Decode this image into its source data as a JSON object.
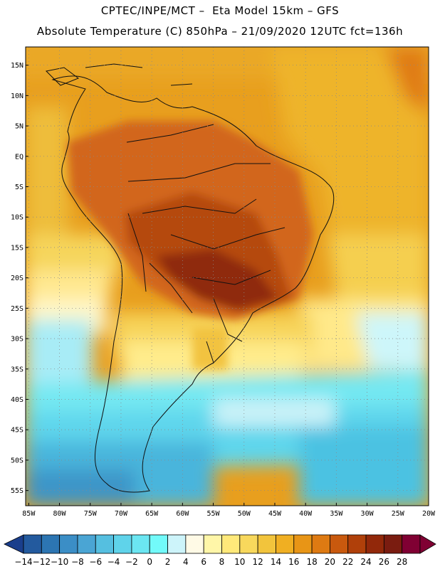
{
  "title_line1": "CPTEC/INPE/MCT –  Eta Model 15km – GFS",
  "title_line2": "Absolute Temperature (C) 850hPa – 21/09/2020 12UTC fct=136h",
  "lat_labels": [
    "15N",
    "10N",
    "5N",
    "EQ",
    "5S",
    "10S",
    "15S",
    "20S",
    "25S",
    "30S",
    "35S",
    "40S",
    "45S",
    "50S",
    "55S"
  ],
  "lon_labels": [
    "85W",
    "80W",
    "75W",
    "70W",
    "65W",
    "60W",
    "55W",
    "50W",
    "45W",
    "40W",
    "35W",
    "30W",
    "25W",
    "20W"
  ],
  "map": {
    "lon_range": [
      -85.5,
      -20
    ],
    "lat_range": [
      -57.5,
      18
    ],
    "grid_lines": "dotted"
  },
  "colorbar": {
    "labels": [
      "-14",
      "-12",
      "-10",
      "-8",
      "-6",
      "-4",
      "-2",
      "0",
      "2",
      "4",
      "6",
      "8",
      "10",
      "12",
      "14",
      "16",
      "18",
      "20",
      "22",
      "24",
      "26",
      "28"
    ],
    "colors": [
      "#1a3e8c",
      "#235a9e",
      "#2c75b2",
      "#3b8ec6",
      "#4aa5d4",
      "#55bfe0",
      "#5fd3ea",
      "#6be6f2",
      "#72fafa",
      "#cdf4fa",
      "#fffae6",
      "#fff6a8",
      "#ffe97a",
      "#f8d85c",
      "#f2c43c",
      "#f0af22",
      "#e89516",
      "#de7a12",
      "#c9590e",
      "#b0400a",
      "#92280a",
      "#7a1c10",
      "#800033"
    ]
  }
}
